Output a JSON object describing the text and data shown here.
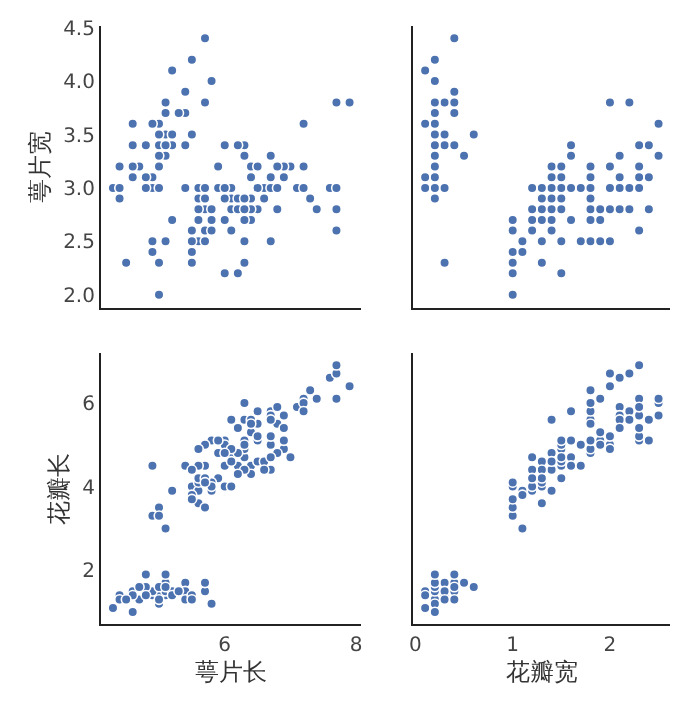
{
  "chart_data": [
    {
      "type": "scatter",
      "ylabel": "萼片宽",
      "tick_labels": "y",
      "marker": "circle",
      "x": [
        5.1,
        4.9,
        4.7,
        4.6,
        5.0,
        5.4,
        4.6,
        5.0,
        4.4,
        4.9,
        5.4,
        4.8,
        4.8,
        4.3,
        5.8,
        5.7,
        null,
        null,
        5.7,
        5.1,
        5.4,
        5.1,
        4.6,
        5.1,
        null,
        5.0,
        null,
        5.2,
        5.2,
        null,
        4.8,
        null,
        5.2,
        5.5,
        null,
        5.0,
        5.5,
        4.9,
        4.4,
        5.1,
        5.0,
        4.5,
        4.4,
        null,
        null,
        null,
        null,
        4.6,
        5.3,
        5.0,
        7.0,
        6.4,
        6.9,
        5.5,
        6.5,
        5.7,
        6.3,
        4.9,
        6.6,
        5.2,
        5.0,
        5.9,
        6.0,
        6.1,
        5.6,
        6.7,
        5.6,
        5.8,
        6.2,
        5.6,
        5.9,
        6.1,
        6.3,
        null,
        6.4,
        6.6,
        6.8,
        6.7,
        6.0,
        5.7,
        5.5,
        null,
        null,
        6.0,
        5.4,
        6.0,
        null,
        6.3,
        null,
        5.5,
        5.5,
        6.1,
        5.8,
        5.0,
        5.6,
        5.7,
        5.7,
        6.2,
        5.1,
        null,
        null,
        null,
        7.1,
        6.3,
        6.5,
        7.6,
        4.9,
        7.3,
        6.7,
        7.2,
        6.5,
        6.4,
        6.8,
        5.7,
        5.8,
        null,
        null,
        7.7,
        7.7,
        null,
        6.9,
        5.6,
        7.7,
        6.3,
        6.7,
        7.2,
        6.2,
        null,
        6.4,
        7.2,
        7.4,
        7.9,
        null,
        6.3,
        6.1,
        7.7,
        6.3,
        6.4,
        6.0,
        null,
        null,
        null,
        null,
        6.8,
        null,
        null,
        null,
        null,
        6.2,
        null
      ],
      "series": [
        {
          "color": "#4c72b0",
          "values": [
            3.5,
            3.0,
            3.2,
            3.1,
            3.6,
            3.9,
            3.4,
            3.4,
            2.9,
            3.1,
            3.7,
            3.4,
            3.0,
            3.0,
            4.0,
            4.4,
            null,
            null,
            3.8,
            3.8,
            3.4,
            3.7,
            3.6,
            3.3,
            null,
            3.0,
            null,
            3.5,
            3.4,
            null,
            3.1,
            null,
            4.1,
            4.2,
            null,
            3.2,
            3.5,
            3.6,
            3.0,
            3.4,
            3.5,
            2.3,
            3.2,
            null,
            null,
            null,
            null,
            3.2,
            3.7,
            3.3,
            3.2,
            3.2,
            3.1,
            2.3,
            2.8,
            2.8,
            3.3,
            2.4,
            2.9,
            2.7,
            2.0,
            3.0,
            2.2,
            2.9,
            2.9,
            3.1,
            3.0,
            2.7,
            2.2,
            2.5,
            3.2,
            2.8,
            2.5,
            null,
            2.9,
            3.0,
            2.8,
            3.0,
            2.9,
            2.6,
            2.4,
            null,
            null,
            2.7,
            3.0,
            3.4,
            null,
            2.3,
            null,
            2.5,
            2.6,
            3.0,
            2.6,
            2.3,
            2.7,
            3.0,
            2.9,
            2.9,
            2.5,
            null,
            null,
            null,
            3.0,
            2.9,
            3.0,
            3.0,
            2.5,
            2.9,
            2.5,
            3.6,
            3.2,
            2.7,
            3.0,
            2.5,
            2.8,
            null,
            null,
            3.8,
            2.6,
            null,
            3.2,
            2.8,
            2.8,
            2.7,
            3.3,
            3.2,
            2.8,
            null,
            2.8,
            3.0,
            2.8,
            3.8,
            null,
            2.8,
            2.6,
            3.0,
            3.4,
            3.1,
            3.0,
            null,
            null,
            null,
            null,
            3.2,
            null,
            null,
            null,
            null,
            3.4,
            null
          ]
        }
      ],
      "xlim": [
        4.12,
        8.08
      ],
      "xticks": [
        6,
        8
      ],
      "ylim": [
        1.88,
        4.52
      ],
      "yticks": [
        {
          "value": 2,
          "label": "2.0"
        },
        {
          "value": 2.5,
          "label": "2.5"
        },
        {
          "value": 3,
          "label": "3.0"
        },
        {
          "value": 3.5,
          "label": "3.5"
        },
        {
          "value": 4,
          "label": "4.0"
        },
        {
          "value": 4.5,
          "label": "4.5"
        }
      ]
    },
    {
      "type": "scatter",
      "tick_labels": false,
      "marker": "circle",
      "x": [
        0.2,
        0.2,
        0.2,
        0.2,
        0.2,
        0.4,
        0.3,
        0.2,
        0.2,
        0.1,
        0.2,
        null,
        0.1,
        null,
        0.2,
        0.4,
        null,
        0.3,
        0.3,
        null,
        null,
        0.4,
        null,
        0.5,
        null,
        null,
        0.4,
        null,
        null,
        null,
        null,
        null,
        0.1,
        0.2,
        null,
        null,
        null,
        0.1,
        null,
        null,
        null,
        0.3,
        null,
        0.6,
        0.4,
        0.3,
        0.2,
        null,
        null,
        0.2,
        1.4,
        1.5,
        1.5,
        1.3,
        1.5,
        1.3,
        1.6,
        1.0,
        1.3,
        1.4,
        1.0,
        1.5,
        1.0,
        1.4,
        null,
        1.4,
        null,
        1.0,
        1.5,
        1.1,
        1.8,
        null,
        1.5,
        1.2,
        null,
        1.4,
        1.4,
        1.7,
        1.5,
        1.0,
        1.1,
        null,
        1.2,
        1.6,
        null,
        1.6,
        null,
        null,
        1.3,
        1.3,
        1.2,
        null,
        null,
        1.0,
        1.3,
        1.2,
        null,
        null,
        null,
        null,
        2.5,
        1.9,
        2.1,
        1.8,
        2.2,
        null,
        1.7,
        null,
        1.8,
        2.5,
        2.0,
        null,
        null,
        2.0,
        2.4,
        2.3,
        1.8,
        2.2,
        2.3,
        null,
        null,
        2.0,
        null,
        1.8,
        2.1,
        null,
        1.8,
        null,
        2.1,
        1.6,
        1.9,
        2.0,
        2.2,
        null,
        1.4,
        2.3,
        2.4,
        1.8,
        null,
        2.1,
        2.4,
        2.3,
        null,
        null,
        null,
        null,
        1.9,
        2.0,
        2.3,
        null
      ],
      "series": [
        {
          "color": "#4c72b0",
          "values": [
            3.5,
            3.0,
            3.2,
            3.1,
            3.6,
            3.9,
            3.4,
            3.4,
            2.9,
            3.1,
            3.7,
            null,
            3.0,
            null,
            4.0,
            4.4,
            null,
            3.5,
            3.8,
            null,
            null,
            3.7,
            null,
            3.3,
            null,
            null,
            3.4,
            null,
            null,
            null,
            null,
            null,
            4.1,
            4.2,
            null,
            null,
            null,
            3.6,
            null,
            null,
            null,
            2.3,
            null,
            3.5,
            3.8,
            3.0,
            3.8,
            null,
            null,
            3.3,
            3.2,
            3.2,
            3.1,
            2.3,
            2.8,
            2.8,
            3.3,
            2.4,
            2.9,
            2.7,
            2.0,
            3.0,
            2.2,
            2.9,
            null,
            3.1,
            null,
            2.7,
            2.2,
            2.5,
            3.2,
            null,
            2.5,
            2.8,
            null,
            3.0,
            2.8,
            3.0,
            2.9,
            2.6,
            2.4,
            null,
            2.7,
            2.7,
            null,
            3.4,
            null,
            null,
            3.0,
            2.5,
            2.6,
            null,
            null,
            2.3,
            2.7,
            3.0,
            null,
            null,
            null,
            null,
            3.3,
            2.7,
            3.0,
            2.9,
            3.0,
            null,
            2.5,
            null,
            2.5,
            3.6,
            3.2,
            null,
            null,
            2.5,
            2.8,
            3.2,
            3.0,
            3.8,
            2.6,
            null,
            null,
            2.8,
            null,
            2.7,
            3.3,
            null,
            2.8,
            null,
            2.8,
            3.0,
            2.8,
            3.8,
            2.8,
            null,
            2.6,
            3.0,
            3.4,
            3.1,
            null,
            3.1,
            3.1,
            3.1,
            null,
            null,
            null,
            null,
            2.5,
            3.0,
            3.4,
            null
          ]
        }
      ],
      "xlim": [
        -0.02,
        2.62
      ],
      "xticks": [
        0,
        1,
        2
      ],
      "ylim": [
        1.88,
        4.52
      ],
      "yticks": [
        2,
        2.5,
        3,
        3.5,
        4,
        4.5
      ]
    },
    {
      "type": "scatter",
      "xlabel": "萼片长",
      "ylabel": "花瓣长",
      "marker": "circle",
      "x": [
        5.1,
        4.9,
        4.7,
        4.6,
        5.0,
        5.4,
        4.6,
        null,
        4.4,
        4.9,
        5.4,
        4.8,
        4.8,
        4.3,
        5.8,
        5.7,
        5.4,
        null,
        5.7,
        5.1,
        null,
        null,
        4.6,
        5.1,
        4.8,
        5.0,
        null,
        5.2,
        5.2,
        4.7,
        null,
        null,
        null,
        5.5,
        null,
        5.0,
        5.5,
        null,
        4.4,
        null,
        5.0,
        4.5,
        null,
        null,
        5.1,
        null,
        5.1,
        null,
        5.3,
        null,
        7.0,
        6.4,
        6.9,
        5.5,
        6.5,
        5.7,
        6.3,
        4.9,
        6.6,
        5.2,
        5.0,
        5.9,
        6.0,
        6.1,
        5.6,
        6.7,
        5.6,
        5.8,
        6.2,
        5.6,
        5.9,
        6.1,
        6.3,
        null,
        6.4,
        6.6,
        6.8,
        6.7,
        6.0,
        5.7,
        5.5,
        5.5,
        5.8,
        6.0,
        5.4,
        null,
        6.7,
        6.3,
        5.6,
        null,
        5.5,
        6.1,
        5.8,
        5.0,
        5.6,
        5.7,
        null,
        6.2,
        5.1,
        5.7,
        6.3,
        5.8,
        7.1,
        6.3,
        6.5,
        7.6,
        4.9,
        7.3,
        6.7,
        7.2,
        6.5,
        6.4,
        6.8,
        5.7,
        null,
        null,
        6.5,
        7.7,
        7.7,
        6.0,
        6.9,
        5.6,
        null,
        null,
        6.7,
        7.2,
        6.2,
        6.1,
        6.4,
        7.2,
        7.4,
        7.9,
        null,
        6.3,
        6.1,
        7.7,
        null,
        6.4,
        6.0,
        6.9,
        6.7,
        6.9,
        null,
        6.8,
        null,
        6.7,
        6.3,
        6.5,
        6.2,
        5.9
      ],
      "series": [
        {
          "color": "#4c72b0",
          "values": [
            1.4,
            1.4,
            1.3,
            1.5,
            1.4,
            1.7,
            1.4,
            null,
            1.4,
            1.5,
            1.5,
            1.6,
            1.4,
            1.1,
            1.2,
            1.5,
            1.3,
            null,
            1.7,
            1.5,
            null,
            null,
            1.0,
            1.7,
            1.9,
            1.6,
            null,
            1.5,
            1.4,
            1.6,
            null,
            null,
            null,
            1.4,
            null,
            1.2,
            1.3,
            null,
            1.3,
            null,
            1.3,
            1.3,
            null,
            null,
            1.9,
            null,
            1.6,
            null,
            1.5,
            null,
            4.7,
            4.5,
            4.9,
            4.0,
            4.6,
            4.5,
            4.7,
            3.3,
            4.6,
            3.9,
            3.5,
            4.2,
            4.0,
            4.7,
            3.6,
            4.4,
            4.5,
            4.1,
            4.5,
            3.9,
            4.8,
            4.0,
            4.9,
            null,
            4.3,
            4.4,
            4.8,
            5.0,
            4.5,
            3.5,
            3.8,
            3.7,
            3.9,
            5.1,
            4.5,
            null,
            4.7,
            4.4,
            4.1,
            null,
            4.4,
            4.6,
            4.0,
            3.3,
            4.2,
            4.2,
            null,
            4.3,
            3.0,
            4.1,
            6.0,
            5.1,
            5.9,
            5.6,
            5.8,
            6.6,
            4.5,
            6.3,
            5.8,
            6.1,
            5.1,
            5.3,
            5.5,
            5.0,
            null,
            null,
            5.5,
            6.7,
            6.9,
            5.0,
            5.7,
            4.9,
            null,
            null,
            5.7,
            6.0,
            4.8,
            4.9,
            5.6,
            5.8,
            6.1,
            6.4,
            null,
            5.1,
            5.6,
            6.1,
            null,
            5.5,
            4.8,
            5.4,
            5.6,
            5.1,
            null,
            5.9,
            null,
            5.2,
            5.0,
            5.2,
            5.4,
            5.1
          ]
        }
      ],
      "xlim": [
        4.12,
        8.08
      ],
      "xticks": [
        6,
        8
      ],
      "ylim": [
        0.705,
        7.195
      ],
      "yticks": [
        2,
        4,
        6
      ]
    },
    {
      "type": "scatter",
      "xlabel": "花瓣宽",
      "tick_labels": "x",
      "marker": "circle",
      "x": [
        null,
        null,
        0.2,
        0.2,
        null,
        0.4,
        0.3,
        null,
        null,
        0.1,
        null,
        0.2,
        0.1,
        0.1,
        0.2,
        0.4,
        0.4,
        null,
        0.3,
        0.3,
        0.2,
        null,
        0.2,
        0.5,
        0.2,
        null,
        0.4,
        null,
        null,
        null,
        null,
        null,
        null,
        null,
        null,
        null,
        null,
        null,
        null,
        null,
        0.3,
        null,
        null,
        0.6,
        0.4,
        null,
        null,
        null,
        null,
        null,
        null,
        1.5,
        1.5,
        1.3,
        1.5,
        null,
        1.6,
        1.0,
        1.3,
        1.4,
        1.0,
        1.5,
        1.0,
        null,
        1.3,
        1.4,
        null,
        1.0,
        null,
        1.1,
        1.8,
        null,
        null,
        1.2,
        null,
        null,
        1.4,
        1.7,
        null,
        null,
        1.1,
        1.0,
        1.2,
        1.6,
        null,
        1.6,
        1.5,
        1.3,
        1.3,
        null,
        1.2,
        1.4,
        1.2,
        null,
        1.3,
        1.2,
        null,
        null,
        1.1,
        null,
        2.5,
        1.9,
        2.1,
        1.8,
        2.2,
        2.1,
        1.7,
        1.8,
        1.8,
        2.5,
        null,
        1.9,
        null,
        2.0,
        2.4,
        null,
        1.8,
        2.2,
        2.3,
        1.5,
        2.3,
        2.0,
        2.0,
        1.8,
        2.1,
        1.8,
        null,
        null,
        2.1,
        1.6,
        1.9,
        2.0,
        2.2,
        1.5,
        1.4,
        2.3,
        2.4,
        null,
        null,
        2.1,
        null,
        2.3,
        null,
        2.3,
        2.5,
        2.3,
        1.9,
        2.0,
        2.3,
        1.8
      ],
      "series": [
        {
          "color": "#4c72b0",
          "values": [
            null,
            null,
            1.3,
            1.5,
            null,
            1.7,
            1.4,
            null,
            null,
            1.5,
            null,
            1.6,
            1.4,
            1.1,
            1.2,
            1.5,
            1.3,
            null,
            1.7,
            1.5,
            1.7,
            null,
            1.0,
            1.7,
            1.9,
            null,
            1.6,
            null,
            null,
            null,
            null,
            null,
            null,
            null,
            null,
            null,
            null,
            null,
            null,
            null,
            1.3,
            null,
            null,
            1.6,
            1.9,
            null,
            null,
            null,
            null,
            null,
            null,
            4.5,
            4.9,
            4.0,
            4.6,
            null,
            4.7,
            3.3,
            4.6,
            3.9,
            3.5,
            4.2,
            4.0,
            null,
            3.6,
            4.4,
            null,
            4.1,
            null,
            3.9,
            4.8,
            null,
            null,
            4.7,
            null,
            null,
            4.8,
            5.0,
            null,
            null,
            3.8,
            3.7,
            3.9,
            5.1,
            null,
            4.5,
            4.7,
            4.4,
            4.1,
            null,
            4.4,
            4.6,
            4.0,
            null,
            4.2,
            4.2,
            null,
            null,
            3.0,
            null,
            6.0,
            5.1,
            5.9,
            5.6,
            5.8,
            6.6,
            4.5,
            6.3,
            5.8,
            6.1,
            null,
            5.3,
            null,
            5.0,
            5.1,
            null,
            5.5,
            6.7,
            6.9,
            5.0,
            5.7,
            4.9,
            6.7,
            4.9,
            5.7,
            6.0,
            null,
            null,
            5.6,
            5.8,
            6.1,
            6.4,
            5.6,
            5.1,
            5.6,
            6.1,
            5.6,
            null,
            null,
            5.4,
            null,
            5.1,
            null,
            5.9,
            5.7,
            5.2,
            5.0,
            5.2,
            5.4,
            5.1
          ]
        }
      ],
      "xlim": [
        -0.02,
        2.62
      ],
      "xticks": [
        0,
        1,
        2
      ],
      "ylim": [
        0.705,
        7.195
      ],
      "yticks": [
        2,
        4,
        6
      ]
    }
  ]
}
